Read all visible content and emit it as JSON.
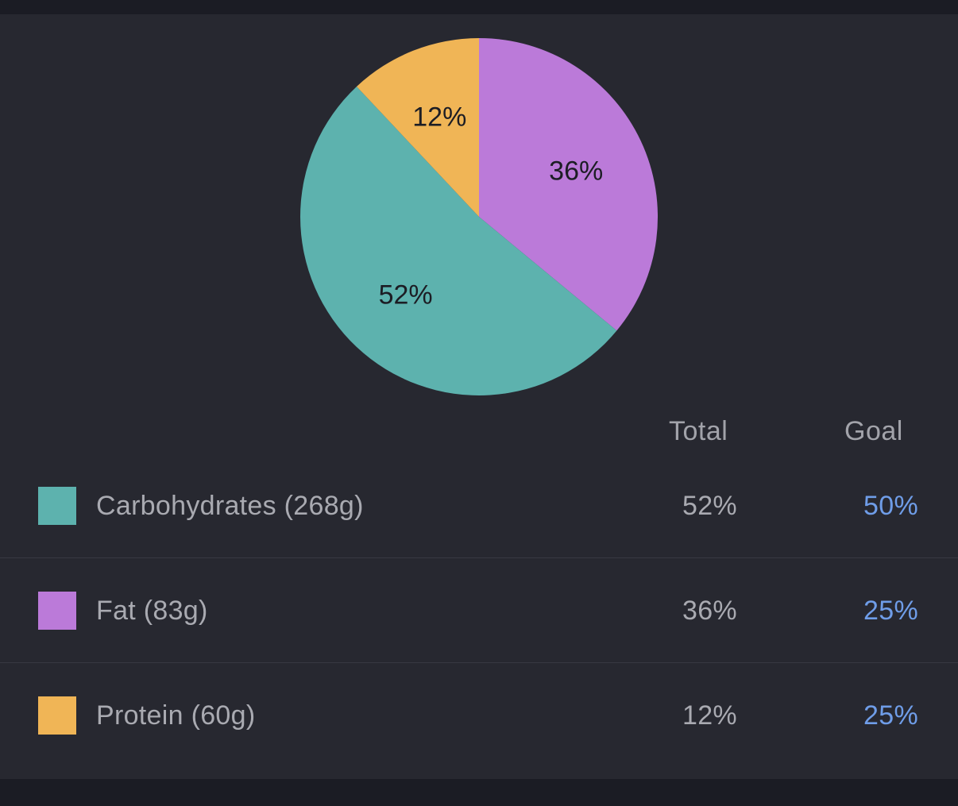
{
  "chart_data": {
    "type": "pie",
    "slices": [
      {
        "label": "Fat (83g)",
        "value": 36,
        "display": "36%",
        "color": "#bb7ad9"
      },
      {
        "label": "Carbohydrates (268g)",
        "value": 52,
        "display": "52%",
        "color": "#5db2ae"
      },
      {
        "label": "Protein (60g)",
        "value": 12,
        "display": "12%",
        "color": "#f0b556"
      }
    ]
  },
  "table": {
    "headers": {
      "total": "Total",
      "goal": "Goal"
    },
    "rows": [
      {
        "label": "Carbohydrates (268g)",
        "total": "52%",
        "goal": "50%",
        "color": "#5db2ae"
      },
      {
        "label": "Fat (83g)",
        "total": "36%",
        "goal": "25%",
        "color": "#bb7ad9"
      },
      {
        "label": "Protein (60g)",
        "total": "12%",
        "goal": "25%",
        "color": "#f0b556"
      }
    ]
  },
  "colors": {
    "background": "#272830",
    "frame": "#1b1c24",
    "goal_text": "#6f9de8",
    "muted_text": "#a9aab1"
  }
}
